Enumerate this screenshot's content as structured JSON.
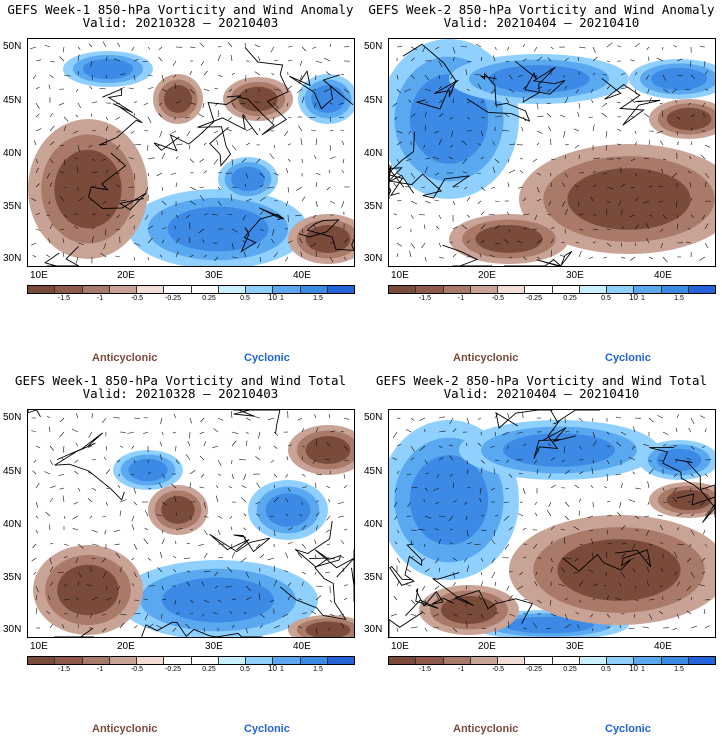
{
  "colors": {
    "anticyclonic": "#7a4a3a",
    "cyclonic": "#1f63d6",
    "scale": [
      "#7a4a3a",
      "#8f5a49",
      "#a97a69",
      "#c9a496",
      "#f2ddd4",
      "#ffffff",
      "#ffffff",
      "#c8f0ff",
      "#8fd0ff",
      "#5aa8ef",
      "#3d8ae6",
      "#2563d8"
    ]
  },
  "panels": [
    {
      "title_line1": "GEFS Week-1 850-hPa Vorticity and Wind Anomaly",
      "title_line2": "Valid: 20210328 – 20210403",
      "lat_labels": [
        "50N",
        "45N",
        "40N",
        "35N",
        "30N"
      ],
      "lon_labels": [
        "10E",
        "20E",
        "30E",
        "40E"
      ],
      "colorbar_labels": [
        "-1.5",
        "-1",
        "-0.5",
        "-0.25",
        "0.25",
        "0.5",
        "1",
        "1.5"
      ],
      "colorbar_unit": "10",
      "legend_anticyclonic": "Anticyclonic",
      "legend_cyclonic": "Cyclonic"
    },
    {
      "title_line1": "GEFS Week-2 850-hPa Vorticity and Wind Anomaly",
      "title_line2": "Valid: 20210404 – 20210410",
      "lat_labels": [
        "50N",
        "45N",
        "40N",
        "35N",
        "30N"
      ],
      "lon_labels": [
        "10E",
        "20E",
        "30E",
        "40E"
      ],
      "colorbar_labels": [
        "-1.5",
        "-1",
        "-0.5",
        "-0.25",
        "0.25",
        "0.5",
        "1",
        "1.5"
      ],
      "colorbar_unit": "10",
      "legend_anticyclonic": "Anticyclonic",
      "legend_cyclonic": "Cyclonic"
    },
    {
      "title_line1": "GEFS Week-1 850-hPa Vorticity and Wind Total",
      "title_line2": "Valid: 20210328 – 20210403",
      "lat_labels": [
        "50N",
        "45N",
        "40N",
        "35N",
        "30N"
      ],
      "lon_labels": [
        "10E",
        "20E",
        "30E",
        "40E"
      ],
      "colorbar_labels": [
        "-1.5",
        "-1",
        "-0.5",
        "-0.25",
        "0.25",
        "0.5",
        "1",
        "1.5"
      ],
      "colorbar_unit": "10",
      "legend_anticyclonic": "Anticyclonic",
      "legend_cyclonic": "Cyclonic"
    },
    {
      "title_line1": "GEFS Week-2 850-hPa Vorticity and Wind Total",
      "title_line2": "Valid: 20210404 – 20210410",
      "lat_labels": [
        "50N",
        "45N",
        "40N",
        "35N",
        "30N"
      ],
      "lon_labels": [
        "10E",
        "20E",
        "30E",
        "40E"
      ],
      "colorbar_labels": [
        "-1.5",
        "-1",
        "-0.5",
        "-0.25",
        "0.25",
        "0.5",
        "1",
        "1.5"
      ],
      "colorbar_unit": "10",
      "legend_anticyclonic": "Anticyclonic",
      "legend_cyclonic": "Cyclonic"
    }
  ]
}
